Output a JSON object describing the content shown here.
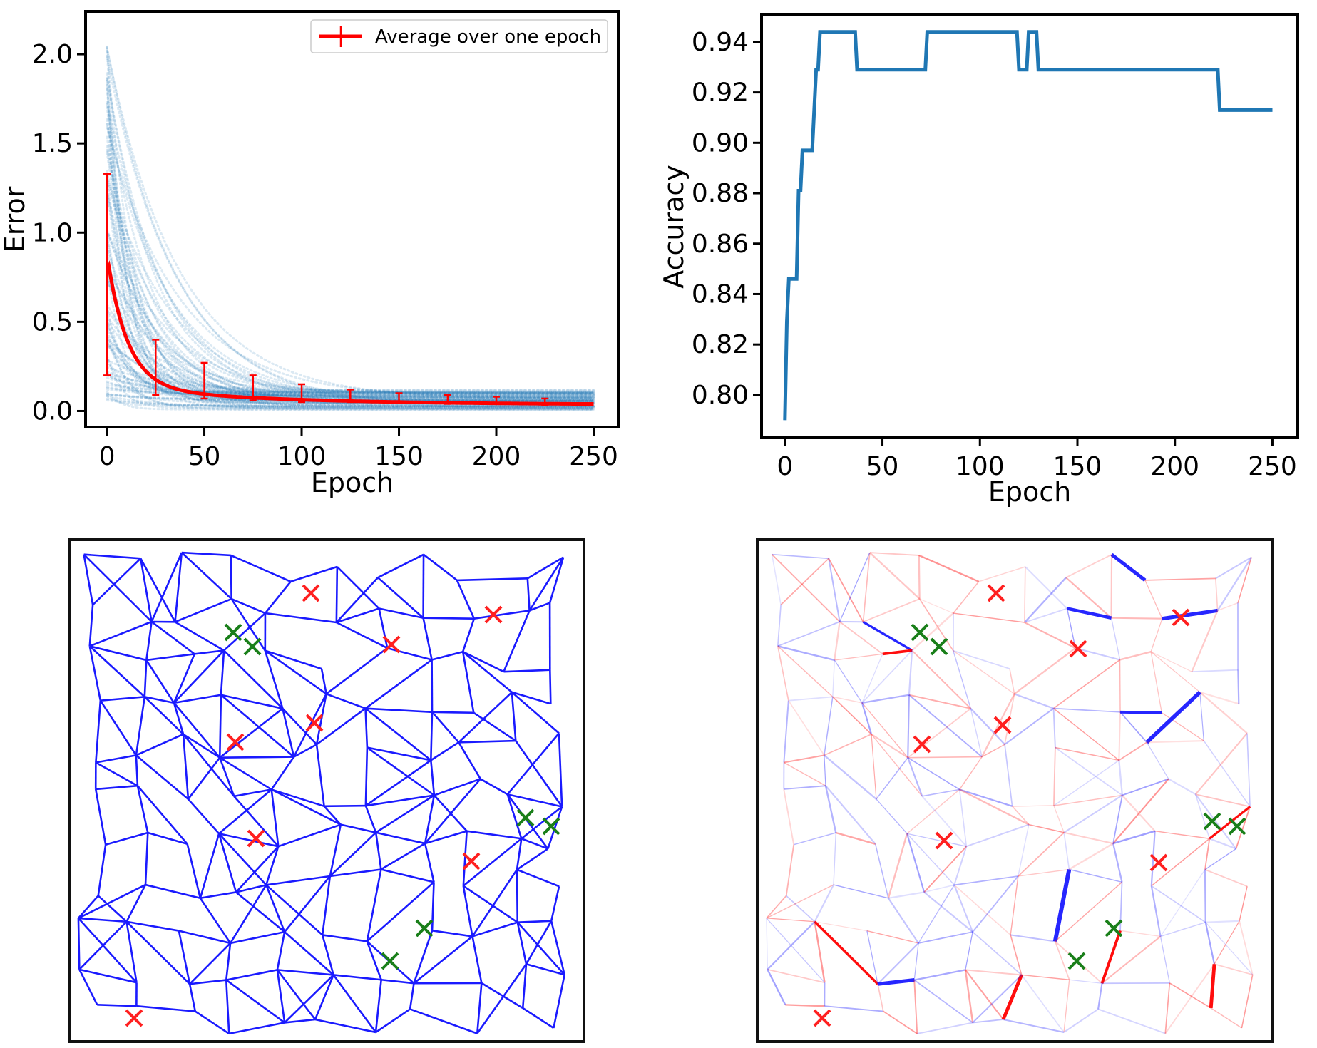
{
  "chart_data": [
    {
      "id": "error",
      "type": "scatter+line",
      "xlabel": "Epoch",
      "ylabel": "Error",
      "xlim": [
        -11,
        263
      ],
      "ylim": [
        -0.09,
        2.24
      ],
      "xticks": [
        0,
        50,
        100,
        150,
        200,
        250
      ],
      "xtick_labels": [
        "0",
        "50",
        "100",
        "150",
        "200",
        "250"
      ],
      "yticks": [
        0.0,
        0.5,
        1.0,
        1.5,
        2.0
      ],
      "ytick_labels": [
        "0.0",
        "0.5",
        "1.0",
        "1.5",
        "2.0"
      ],
      "legend": {
        "label": "Average over one epoch",
        "position": "top-right"
      },
      "scatter_color": "#1f77b4",
      "mean_color": "#ff0000",
      "mean_curve": {
        "a": 0.035,
        "b": 0.74,
        "tau": 10.5,
        "c": 0.009
      },
      "error_bars": [
        {
          "x": 0,
          "mean": 0.77,
          "low": 0.2,
          "high": 1.33
        },
        {
          "x": 25,
          "mean": 0.25,
          "low": 0.09,
          "high": 0.4
        },
        {
          "x": 50,
          "mean": 0.17,
          "low": 0.07,
          "high": 0.27
        },
        {
          "x": 75,
          "mean": 0.13,
          "low": 0.06,
          "high": 0.2
        },
        {
          "x": 100,
          "mean": 0.1,
          "low": 0.05,
          "high": 0.15
        },
        {
          "x": 125,
          "mean": 0.08,
          "low": 0.05,
          "high": 0.12
        },
        {
          "x": 150,
          "mean": 0.07,
          "low": 0.045,
          "high": 0.1
        },
        {
          "x": 175,
          "mean": 0.06,
          "low": 0.04,
          "high": 0.09
        },
        {
          "x": 200,
          "mean": 0.055,
          "low": 0.04,
          "high": 0.08
        },
        {
          "x": 225,
          "mean": 0.05,
          "low": 0.035,
          "high": 0.07
        }
      ]
    },
    {
      "id": "accuracy",
      "type": "line",
      "xlabel": "Epoch",
      "ylabel": "Accuracy",
      "xlim": [
        -12,
        263
      ],
      "ylim": [
        0.783,
        0.951
      ],
      "xticks": [
        0,
        50,
        100,
        150,
        200,
        250
      ],
      "xtick_labels": [
        "0",
        "50",
        "100",
        "150",
        "200",
        "250"
      ],
      "yticks": [
        0.8,
        0.82,
        0.84,
        0.86,
        0.88,
        0.9,
        0.92,
        0.94
      ],
      "ytick_labels": [
        "0.80",
        "0.82",
        "0.84",
        "0.86",
        "0.88",
        "0.90",
        "0.92",
        "0.94"
      ],
      "line_color": "#1f77b4",
      "points": [
        [
          0,
          0.79
        ],
        [
          1,
          0.829
        ],
        [
          2,
          0.846
        ],
        [
          6,
          0.846
        ],
        [
          7,
          0.881
        ],
        [
          8,
          0.881
        ],
        [
          9,
          0.897
        ],
        [
          14,
          0.897
        ],
        [
          16,
          0.929
        ],
        [
          17,
          0.929
        ],
        [
          18,
          0.944
        ],
        [
          36,
          0.944
        ],
        [
          37,
          0.929
        ],
        [
          72,
          0.929
        ],
        [
          73,
          0.944
        ],
        [
          119,
          0.944
        ],
        [
          120,
          0.929
        ],
        [
          124,
          0.929
        ],
        [
          125,
          0.944
        ],
        [
          129,
          0.944
        ],
        [
          130,
          0.929
        ],
        [
          222,
          0.929
        ],
        [
          223,
          0.913
        ],
        [
          250,
          0.913
        ]
      ]
    }
  ]
}
